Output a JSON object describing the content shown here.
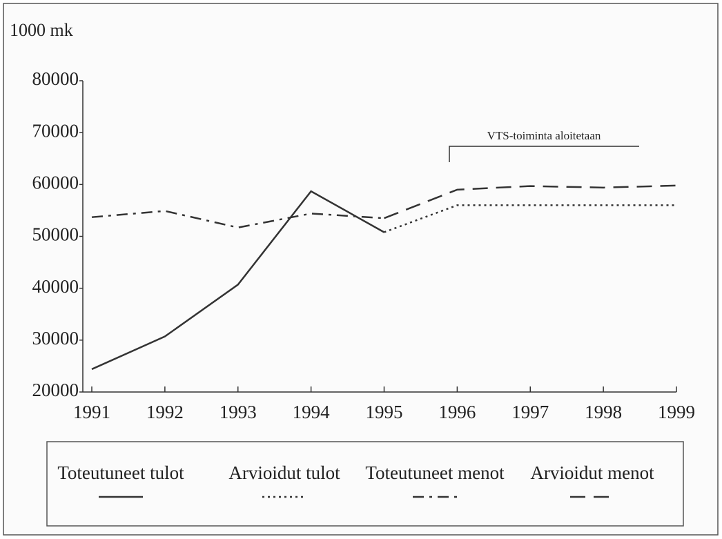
{
  "chart_data": {
    "type": "line",
    "y_label": "1000 mk",
    "annotation": "VTS-toiminta aloitetaan",
    "categories": [
      "1991",
      "1992",
      "1993",
      "1994",
      "1995",
      "1996",
      "1997",
      "1998",
      "1999"
    ],
    "series": [
      {
        "name": "Toteutuneet tulot",
        "color": "#333333",
        "style": "solid",
        "values": [
          24400,
          30700,
          40700,
          58700,
          50800,
          null,
          null,
          null,
          null
        ]
      },
      {
        "name": "Arvioidut tulot",
        "color": "#333333",
        "style": "dotted",
        "values": [
          null,
          null,
          null,
          null,
          50800,
          56000,
          56000,
          56000,
          56000
        ]
      },
      {
        "name": "Toteutuneet menot",
        "color": "#333333",
        "style": "dashdot",
        "values": [
          53700,
          54900,
          51700,
          54400,
          53500,
          null,
          null,
          null,
          null
        ]
      },
      {
        "name": "Arvioidut menot",
        "color": "#333333",
        "style": "dashed",
        "values": [
          null,
          null,
          null,
          null,
          53500,
          59000,
          59700,
          59400,
          59800
        ]
      }
    ],
    "ylim": [
      20000,
      80000
    ],
    "yticks": [
      20000,
      30000,
      40000,
      50000,
      60000,
      70000,
      80000
    ],
    "grid": false
  }
}
